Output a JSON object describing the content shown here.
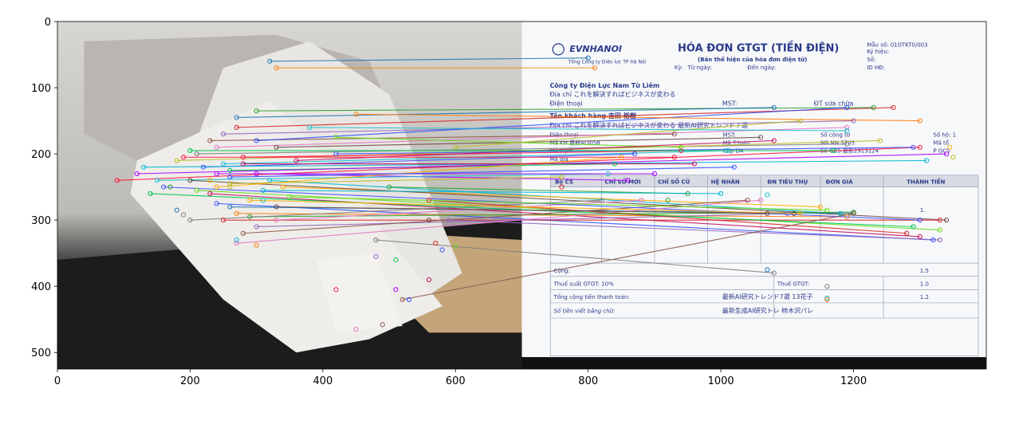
{
  "chart_data": {
    "type": "scatter",
    "title": "",
    "xlabel": "",
    "ylabel": "",
    "xlim": [
      0,
      1400
    ],
    "ylim": [
      525,
      0
    ],
    "grid": false,
    "x_ticks": [
      0,
      200,
      400,
      600,
      800,
      1000,
      1200
    ],
    "y_ticks": [
      0,
      100,
      200,
      300,
      400,
      500
    ],
    "left_image_extent": [
      0,
      700,
      0,
      525
    ],
    "right_image_extent": [
      700,
      1400,
      0,
      525
    ],
    "photo_colors": {
      "paper": "#e8e6e2",
      "paper_shadow": "#b9b6b1",
      "table_light": "#d0cec9",
      "table_dark": "#1c1c1c",
      "cardboard": "#c4a57a",
      "right_bg": "#f7f8fa",
      "right_bottom_bar": "#111111"
    },
    "invoice_text": {
      "brand": "EVNHANOI",
      "brand_sub": "Tổng Công ty Điện lực TP Hà Nội",
      "title": "HÓA ĐƠN GTGT (TIỀN ĐIỆN)",
      "subtitle": "(Bản thể hiện của hóa đơn điện tử)",
      "period_label": "Kỳ:",
      "from_label": "Từ ngày:",
      "to_label": "Đến ngày:",
      "form_no": "Mẫu số: 01GTKT0/003",
      "symbol": "Ký hiệu:",
      "number": "Số:",
      "id": "ID HĐ:",
      "company": "Công ty Điện Lực Nam Từ Liêm",
      "address": "Địa chỉ これを解決すればビジネスが変わる",
      "phone": "Điện thoại",
      "mst": "MST:",
      "dt_label": "ĐT sửa chữa",
      "customer": "Tên khách hàng 吉田 裕樹",
      "customer_addr": "Địa chỉ これを解決すればビジネスが変わる 最新AI研究トレンド７選",
      "phone2": "Điện thoại",
      "mst2": "MST:",
      "so_cong_to": "Số công tơ",
      "so_ho": "Số hộ: 1",
      "ma_kh": "Mã KH 最新AI3058",
      "ma_t_toan": "Mã T.toán",
      "ma_nn": "Mã NN 5705",
      "ma_to": "Mã tổ",
      "ma_tram": "Mã trạm",
      "cap_da": "Cấp ĐA",
      "so_gcs": "Số GCS 最新2913224",
      "p_gcs": "P GCS",
      "ma_gia": "Mã giá",
      "col_bo_cs": "Bộ CS",
      "col_chi_so_moi": "CHỈ SỐ MỚI",
      "col_chi_so_cu": "CHỈ SỐ CŨ",
      "col_he_nhan": "HỆ NHÂN",
      "col_dn": "ĐN TIÊU THỤ",
      "col_don_gia": "ĐƠN GIÁ",
      "col_thanh_tien": "THÀNH TIỀN",
      "cong": "Cộng:",
      "thue_suat": "Thuế suất GTGT: 10%",
      "thue": "Thuế GTGT:",
      "tong_cong": "Tổng cộng tiền thanh toán:",
      "bang_chu": "Số tiền viết bằng chữ:",
      "tong_val": "最新AI研究トレンド7選 13花子",
      "bang_chu_val": "最新生成AI研究トレ 柿木沢パレ",
      "amount_1": "1.",
      "amount_2": "1.5",
      "amount_3": "1.0",
      "amount_4": "1.2"
    },
    "match_colors": [
      "#1f77b4",
      "#ff7f0e",
      "#2ca02c",
      "#d62728",
      "#9467bd",
      "#8c564b",
      "#e377c2",
      "#7f7f7f",
      "#bcbd22",
      "#17becf",
      "#3f51ff",
      "#00c853",
      "#ff1744",
      "#aa00ff",
      "#00b8d4",
      "#ffab00",
      "#6d4c41",
      "#64dd17",
      "#c51162",
      "#304ffe"
    ],
    "matches": [
      [
        320,
        60,
        800,
        55
      ],
      [
        330,
        70,
        810,
        70
      ],
      [
        300,
        135,
        1230,
        130
      ],
      [
        270,
        160,
        1260,
        130
      ],
      [
        250,
        170,
        1200,
        150
      ],
      [
        230,
        180,
        930,
        170
      ],
      [
        240,
        190,
        1190,
        160
      ],
      [
        210,
        200,
        1190,
        185
      ],
      [
        180,
        210,
        1240,
        180
      ],
      [
        250,
        215,
        1010,
        195
      ],
      [
        220,
        220,
        870,
        200
      ],
      [
        260,
        225,
        840,
        215
      ],
      [
        280,
        205,
        940,
        195
      ],
      [
        300,
        230,
        860,
        240
      ],
      [
        320,
        240,
        1180,
        290
      ],
      [
        340,
        250,
        1150,
        280
      ],
      [
        200,
        240,
        1340,
        300
      ],
      [
        210,
        255,
        1330,
        315
      ],
      [
        230,
        260,
        1300,
        325
      ],
      [
        240,
        275,
        1320,
        330
      ],
      [
        260,
        280,
        1200,
        290
      ],
      [
        270,
        290,
        1190,
        295
      ],
      [
        290,
        295,
        1200,
        288
      ],
      [
        250,
        300,
        1330,
        300
      ],
      [
        300,
        310,
        1100,
        290
      ],
      [
        280,
        320,
        1040,
        270
      ],
      [
        330,
        300,
        880,
        270
      ],
      [
        200,
        300,
        820,
        270
      ],
      [
        260,
        245,
        760,
        235
      ],
      [
        150,
        240,
        830,
        230
      ],
      [
        160,
        250,
        1300,
        300
      ],
      [
        140,
        260,
        1290,
        310
      ],
      [
        90,
        240,
        1300,
        190
      ],
      [
        120,
        230,
        1340,
        200
      ],
      [
        130,
        220,
        1310,
        210
      ],
      [
        240,
        250,
        850,
        205
      ],
      [
        330,
        190,
        1060,
        175
      ],
      [
        420,
        175,
        940,
        190
      ],
      [
        360,
        210,
        1080,
        180
      ],
      [
        300,
        180,
        1190,
        130
      ],
      [
        270,
        145,
        1080,
        130
      ],
      [
        450,
        140,
        1300,
        150
      ],
      [
        500,
        250,
        950,
        260
      ],
      [
        560,
        270,
        1280,
        320
      ],
      [
        590,
        300,
        1330,
        330
      ],
      [
        520,
        420,
        1200,
        290
      ],
      [
        270,
        335,
        1060,
        270
      ],
      [
        480,
        330,
        1080,
        380
      ],
      [
        600,
        190,
        1120,
        150
      ],
      [
        380,
        160,
        1190,
        165
      ],
      [
        420,
        200,
        1290,
        190
      ],
      [
        200,
        195,
        1170,
        195
      ],
      [
        190,
        205,
        930,
        205
      ],
      [
        240,
        230,
        900,
        230
      ],
      [
        310,
        255,
        1000,
        260
      ],
      [
        290,
        270,
        1120,
        290
      ],
      [
        330,
        280,
        1070,
        290
      ],
      [
        350,
        265,
        1160,
        285
      ],
      [
        280,
        215,
        960,
        215
      ],
      [
        260,
        235,
        1020,
        220
      ]
    ],
    "extra_points": [
      [
        180,
        285
      ],
      [
        190,
        292
      ],
      [
        270,
        330
      ],
      [
        300,
        338
      ],
      [
        260,
        250
      ],
      [
        230,
        240
      ],
      [
        170,
        250
      ],
      [
        310,
        270
      ],
      [
        560,
        300
      ],
      [
        570,
        335
      ],
      [
        580,
        345
      ],
      [
        600,
        340
      ],
      [
        480,
        355
      ],
      [
        510,
        360
      ],
      [
        560,
        390
      ],
      [
        490,
        458
      ],
      [
        420,
        405
      ],
      [
        530,
        420
      ],
      [
        450,
        465
      ],
      [
        510,
        405
      ],
      [
        1070,
        375
      ],
      [
        1160,
        400
      ],
      [
        1160,
        418
      ],
      [
        1160,
        420
      ],
      [
        1350,
        205
      ],
      [
        1345,
        190
      ],
      [
        920,
        270
      ],
      [
        1070,
        262
      ],
      [
        1110,
        290
      ],
      [
        760,
        250
      ]
    ]
  }
}
